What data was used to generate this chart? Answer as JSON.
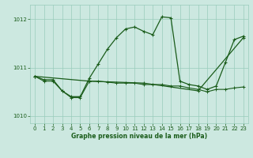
{
  "xlabel": "Graphe pression niveau de la mer (hPa)",
  "ylim": [
    1009.85,
    1012.3
  ],
  "xlim": [
    -0.5,
    23.5
  ],
  "yticks": [
    1010,
    1011,
    1012
  ],
  "xticks": [
    0,
    1,
    2,
    3,
    4,
    5,
    6,
    7,
    8,
    9,
    10,
    11,
    12,
    13,
    14,
    15,
    16,
    17,
    18,
    19,
    20,
    21,
    22,
    23
  ],
  "background_color": "#cce8e0",
  "grid_color": "#99ccbb",
  "line_color": "#1a5c1a",
  "y_high": [
    1010.82,
    1010.75,
    1010.75,
    1010.52,
    1010.4,
    1010.4,
    1010.78,
    1011.08,
    1011.38,
    1011.62,
    1011.8,
    1011.84,
    1011.75,
    1011.68,
    1012.05,
    1012.03,
    1010.72,
    1010.65,
    1010.62,
    1010.55,
    1010.62,
    1011.1,
    1011.58,
    1011.65
  ],
  "x_high": [
    0,
    1,
    2,
    3,
    4,
    5,
    6,
    7,
    8,
    9,
    10,
    11,
    12,
    13,
    14,
    15,
    16,
    17,
    18,
    19,
    20,
    21,
    22,
    23
  ],
  "y_low": [
    1010.82,
    1010.72,
    1010.72,
    1010.52,
    1010.38,
    1010.38,
    1010.72,
    1010.72,
    1010.7,
    1010.68,
    1010.68,
    1010.68,
    1010.65,
    1010.65,
    1010.65,
    1010.62,
    1010.62,
    1010.58,
    1010.55,
    1010.5,
    1010.55,
    1010.55,
    1010.58,
    1010.6
  ],
  "x_low": [
    0,
    1,
    2,
    3,
    4,
    5,
    6,
    7,
    8,
    9,
    10,
    11,
    12,
    13,
    14,
    15,
    16,
    17,
    18,
    19,
    20,
    21,
    22,
    23
  ],
  "y_trend": [
    1010.82,
    1010.72,
    1010.68,
    1010.52,
    1011.62
  ],
  "x_trend": [
    0,
    6,
    12,
    18,
    23
  ]
}
